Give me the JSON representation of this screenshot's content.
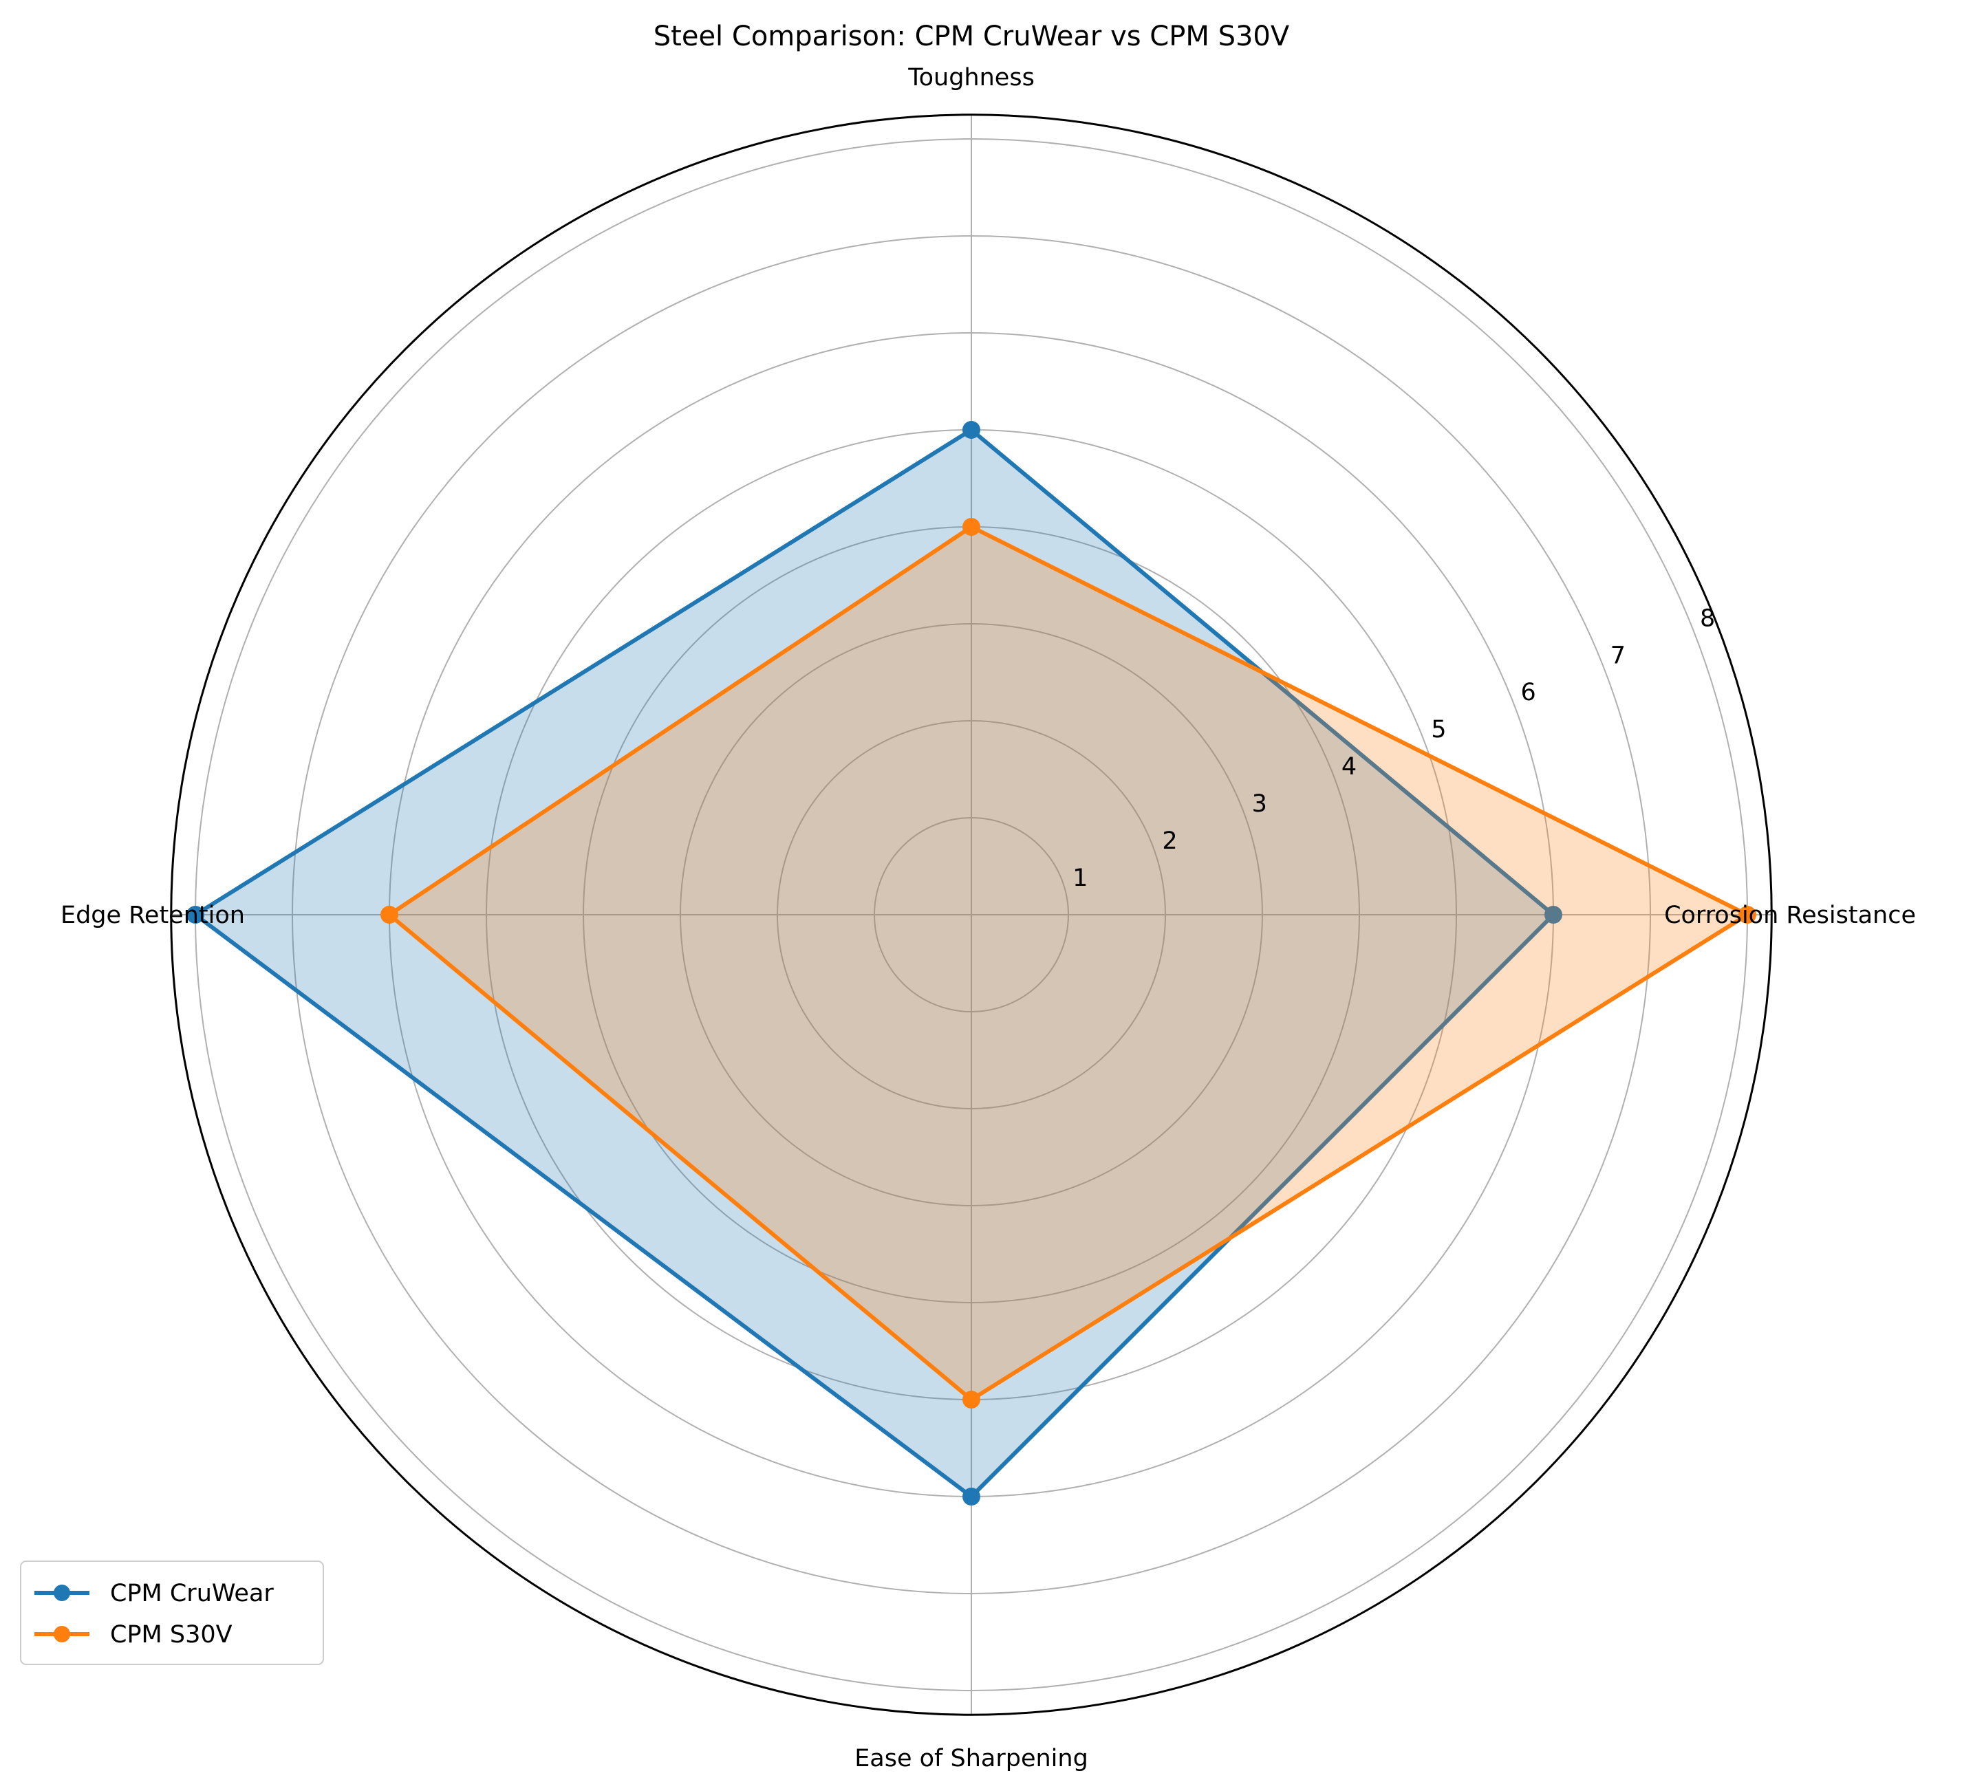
{
  "chart_data": {
    "type": "radar",
    "title": "Steel Comparison: CPM CruWear vs CPM S30V",
    "axes": [
      "Corrosion Resistance",
      "Toughness",
      "Edge Retention",
      "Ease of Sharpening"
    ],
    "rlim": [
      0,
      8.25
    ],
    "rticks": [
      1,
      2,
      3,
      4,
      5,
      6,
      7,
      8
    ],
    "rtick_labels": [
      "1",
      "2",
      "3",
      "4",
      "5",
      "6",
      "7",
      "8"
    ],
    "grid": true,
    "legend_position": "lower-left",
    "series": [
      {
        "name": "CPM CruWear",
        "values": [
          6,
          5,
          8,
          6
        ],
        "color": "#1f77b4"
      },
      {
        "name": "CPM S30V",
        "values": [
          8,
          4,
          6,
          5
        ],
        "color": "#ff7f0e"
      }
    ]
  }
}
